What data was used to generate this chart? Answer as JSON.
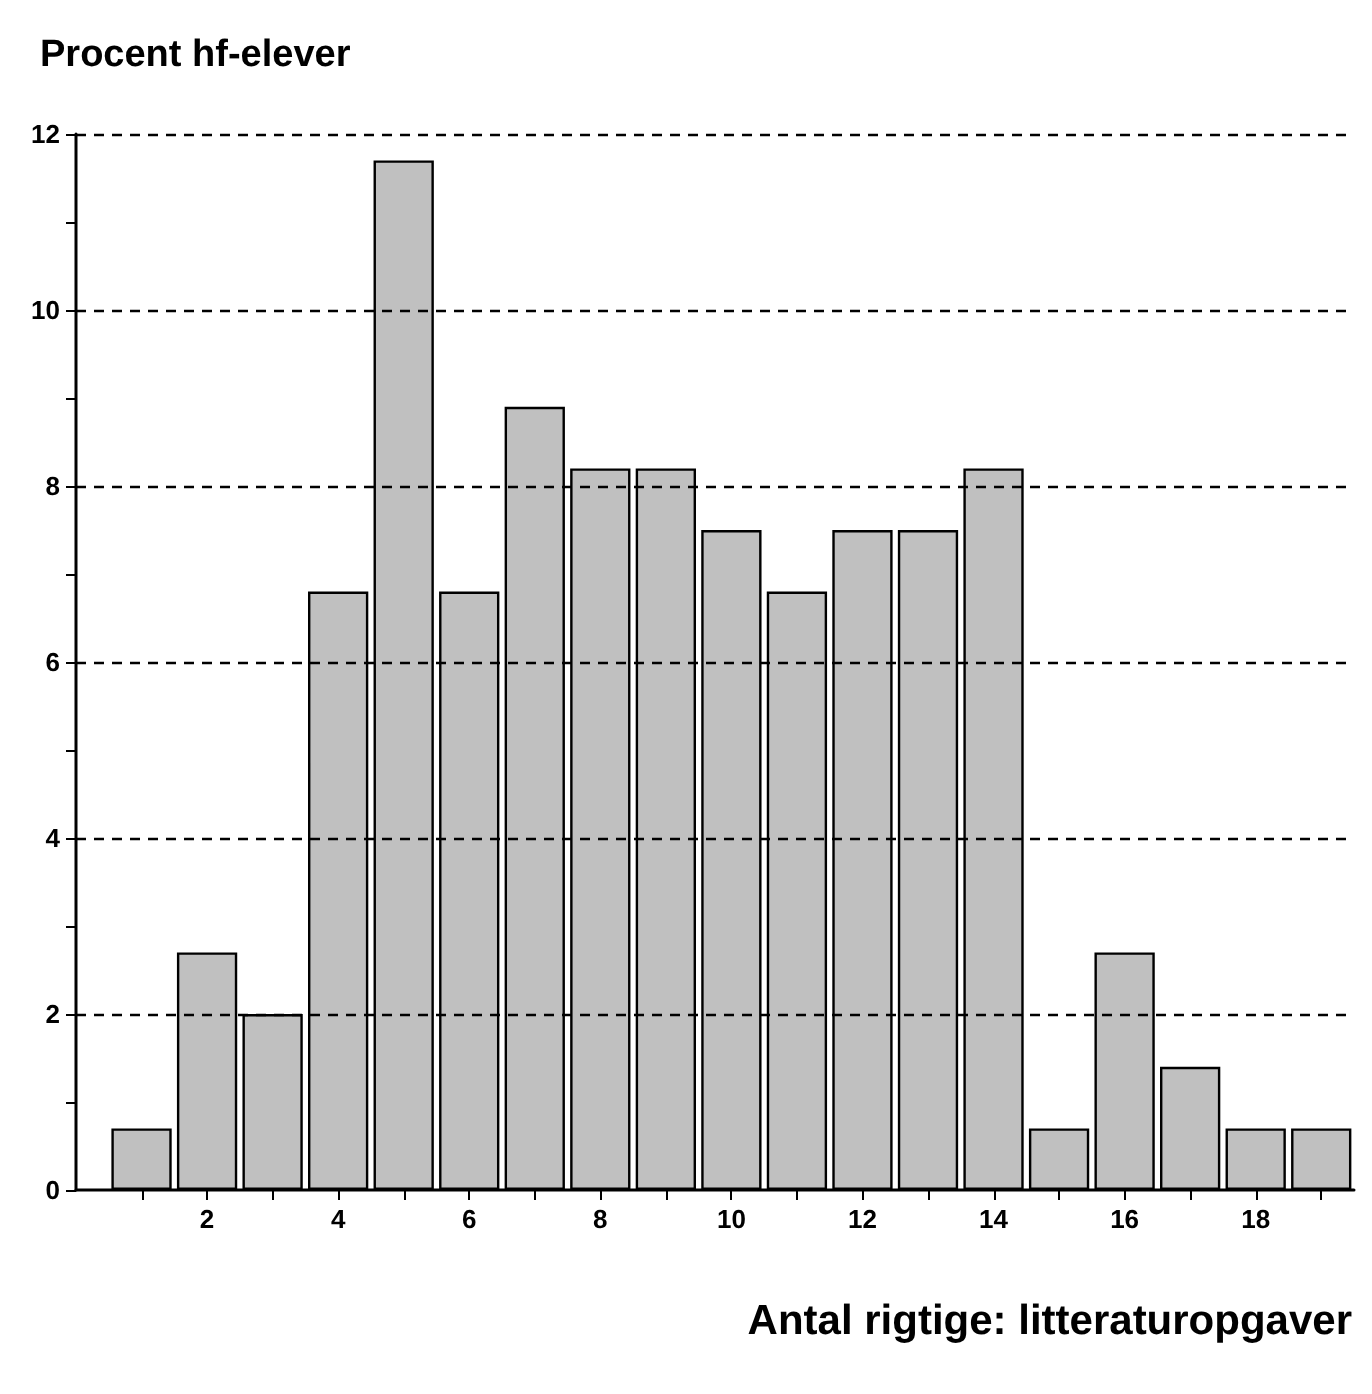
{
  "chart_data": {
    "type": "bar",
    "ylabel": "Procent hf-elever",
    "xlabel": "Antal rigtige: litteraturopgaver",
    "x": [
      1,
      2,
      3,
      4,
      5,
      6,
      7,
      8,
      9,
      10,
      11,
      12,
      13,
      14,
      15,
      16,
      17,
      18,
      19
    ],
    "values": [
      0.7,
      2.7,
      2.0,
      6.8,
      11.7,
      6.8,
      8.9,
      8.2,
      8.2,
      7.5,
      6.8,
      7.5,
      7.5,
      8.2,
      0.7,
      2.7,
      1.4,
      0.7,
      0.7
    ],
    "color": "#c0c0c0",
    "xlim": [
      0,
      19.5
    ],
    "xticks": [
      {
        "value": 1,
        "label": null
      },
      2,
      {
        "value": 3,
        "label": null
      },
      4,
      {
        "value": 5,
        "label": null
      },
      6,
      {
        "value": 7,
        "label": null
      },
      8,
      {
        "value": 9,
        "label": null
      },
      10,
      {
        "value": 11,
        "label": null
      },
      12,
      {
        "value": 13,
        "label": null
      },
      14,
      {
        "value": 15,
        "label": null
      },
      16,
      {
        "value": 17,
        "label": null
      },
      18,
      {
        "value": 19,
        "label": null
      }
    ],
    "ylim": [
      0,
      12
    ],
    "yticks": [
      0,
      {
        "value": 1,
        "label": null
      },
      2,
      {
        "value": 3,
        "label": null
      },
      4,
      {
        "value": 5,
        "label": null
      },
      6,
      {
        "value": 7,
        "label": null
      },
      8,
      {
        "value": 9,
        "label": null
      },
      10,
      {
        "value": 11,
        "label": null
      },
      12
    ],
    "grid": "y"
  }
}
